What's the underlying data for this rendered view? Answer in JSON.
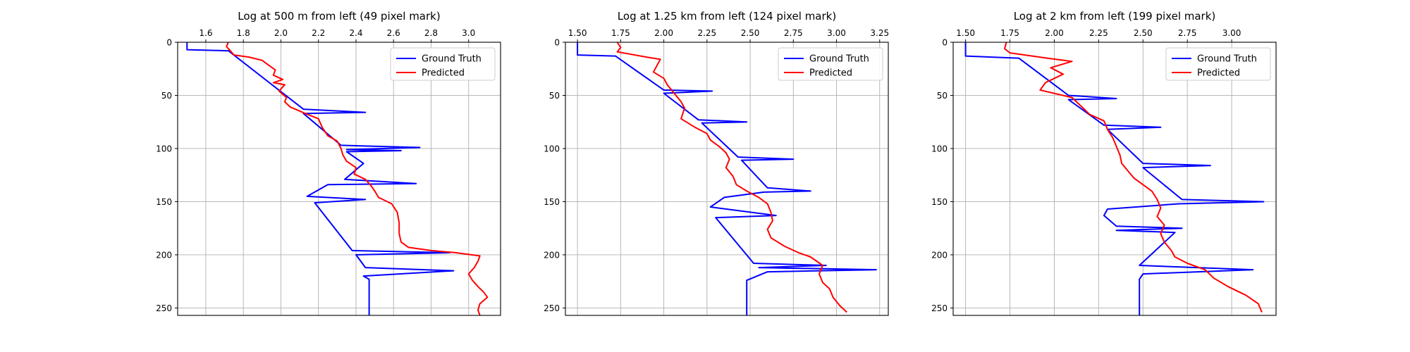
{
  "chart_data": [
    {
      "type": "line",
      "title": "Log at 500 m from left (49 pixel mark)",
      "xlim": [
        1.45,
        3.17
      ],
      "ylim": [
        257,
        0
      ],
      "xticks": [
        1.6,
        1.8,
        2.0,
        2.2,
        2.4,
        2.6,
        2.8,
        3.0
      ],
      "xtick_labels": [
        "1.6",
        "1.8",
        "2.0",
        "2.2",
        "2.4",
        "2.6",
        "2.8",
        "3.0"
      ],
      "yticks": [
        0,
        50,
        100,
        150,
        200,
        250
      ],
      "ytick_labels": [
        "0",
        "50",
        "100",
        "150",
        "200",
        "250"
      ],
      "xaxis_position": "top",
      "grid": true,
      "legend_position": "top-right",
      "series": [
        {
          "name": "Ground Truth",
          "color": "#0000ff",
          "points": [
            [
              1.5,
              0
            ],
            [
              1.5,
              7
            ],
            [
              1.72,
              8
            ],
            [
              2.12,
              63
            ],
            [
              2.45,
              66
            ],
            [
              2.12,
              67
            ],
            [
              2.32,
              97
            ],
            [
              2.74,
              99
            ],
            [
              2.35,
              101
            ],
            [
              2.64,
              102
            ],
            [
              2.35,
              103
            ],
            [
              2.44,
              114
            ],
            [
              2.34,
              129
            ],
            [
              2.72,
              133
            ],
            [
              2.25,
              134
            ],
            [
              2.14,
              145
            ],
            [
              2.45,
              148
            ],
            [
              2.18,
              151
            ],
            [
              2.38,
              196
            ],
            [
              2.9,
              198
            ],
            [
              2.4,
              200
            ],
            [
              2.45,
              212
            ],
            [
              2.92,
              215
            ],
            [
              2.44,
              220
            ],
            [
              2.47,
              223
            ],
            [
              2.47,
              257
            ]
          ]
        },
        {
          "name": "Predicted",
          "color": "#ff0000",
          "points": [
            [
              1.72,
              0
            ],
            [
              1.71,
              4
            ],
            [
              1.73,
              8
            ],
            [
              1.75,
              12
            ],
            [
              1.83,
              14
            ],
            [
              1.9,
              17
            ],
            [
              1.93,
              21
            ],
            [
              1.97,
              26
            ],
            [
              1.96,
              31
            ],
            [
              2.01,
              35
            ],
            [
              1.96,
              38
            ],
            [
              2.02,
              40
            ],
            [
              1.99,
              46
            ],
            [
              2.03,
              52
            ],
            [
              2.02,
              56
            ],
            [
              2.05,
              61
            ],
            [
              2.13,
              67
            ],
            [
              2.2,
              72
            ],
            [
              2.22,
              80
            ],
            [
              2.25,
              88
            ],
            [
              2.3,
              93
            ],
            [
              2.32,
              100
            ],
            [
              2.33,
              106
            ],
            [
              2.35,
              112
            ],
            [
              2.4,
              118
            ],
            [
              2.39,
              124
            ],
            [
              2.45,
              129
            ],
            [
              2.48,
              135
            ],
            [
              2.5,
              140
            ],
            [
              2.52,
              146
            ],
            [
              2.59,
              152
            ],
            [
              2.62,
              160
            ],
            [
              2.63,
              170
            ],
            [
              2.63,
              180
            ],
            [
              2.64,
              188
            ],
            [
              2.68,
              193
            ],
            [
              2.8,
              196
            ],
            [
              2.93,
              198
            ],
            [
              3.06,
              201
            ],
            [
              3.05,
              206
            ],
            [
              3.03,
              212
            ],
            [
              3.0,
              218
            ],
            [
              3.02,
              224
            ],
            [
              3.05,
              230
            ],
            [
              3.08,
              235
            ],
            [
              3.1,
              240
            ],
            [
              3.06,
              246
            ],
            [
              3.05,
              252
            ],
            [
              3.06,
              257
            ]
          ]
        }
      ]
    },
    {
      "type": "line",
      "title": "Log at 1.25 km from left (124 pixel mark)",
      "xlim": [
        1.43,
        3.3
      ],
      "ylim": [
        257,
        0
      ],
      "xticks": [
        1.5,
        1.75,
        2.0,
        2.25,
        2.5,
        2.75,
        3.0,
        3.25
      ],
      "xtick_labels": [
        "1.50",
        "1.75",
        "2.00",
        "2.25",
        "2.50",
        "2.75",
        "3.00",
        "3.25"
      ],
      "yticks": [
        0,
        50,
        100,
        150,
        200,
        250
      ],
      "ytick_labels": [
        "0",
        "50",
        "100",
        "150",
        "200",
        "250"
      ],
      "xaxis_position": "top",
      "grid": true,
      "legend_position": "top-right",
      "series": [
        {
          "name": "Ground Truth",
          "color": "#0000ff",
          "points": [
            [
              1.5,
              0
            ],
            [
              1.5,
              12
            ],
            [
              1.72,
              13
            ],
            [
              2.0,
              45
            ],
            [
              2.28,
              46
            ],
            [
              2.0,
              48
            ],
            [
              2.2,
              73
            ],
            [
              2.48,
              75
            ],
            [
              2.22,
              76
            ],
            [
              2.43,
              108
            ],
            [
              2.75,
              110
            ],
            [
              2.45,
              111
            ],
            [
              2.6,
              137
            ],
            [
              2.85,
              140
            ],
            [
              2.58,
              141
            ],
            [
              2.35,
              146
            ],
            [
              2.27,
              155
            ],
            [
              2.65,
              163
            ],
            [
              2.3,
              165
            ],
            [
              2.52,
              208
            ],
            [
              2.94,
              210
            ],
            [
              2.55,
              212
            ],
            [
              3.23,
              214
            ],
            [
              2.6,
              216
            ],
            [
              2.48,
              224
            ],
            [
              2.48,
              257
            ]
          ]
        },
        {
          "name": "Predicted",
          "color": "#ff0000",
          "points": [
            [
              1.73,
              0
            ],
            [
              1.75,
              5
            ],
            [
              1.73,
              9
            ],
            [
              1.9,
              14
            ],
            [
              1.98,
              16
            ],
            [
              1.96,
              22
            ],
            [
              1.94,
              28
            ],
            [
              2.0,
              34
            ],
            [
              2.02,
              40
            ],
            [
              2.06,
              48
            ],
            [
              2.1,
              56
            ],
            [
              2.12,
              62
            ],
            [
              2.1,
              72
            ],
            [
              2.18,
              80
            ],
            [
              2.25,
              86
            ],
            [
              2.27,
              92
            ],
            [
              2.32,
              98
            ],
            [
              2.36,
              104
            ],
            [
              2.38,
              110
            ],
            [
              2.36,
              118
            ],
            [
              2.4,
              126
            ],
            [
              2.42,
              134
            ],
            [
              2.48,
              140
            ],
            [
              2.55,
              146
            ],
            [
              2.6,
              152
            ],
            [
              2.62,
              160
            ],
            [
              2.63,
              168
            ],
            [
              2.6,
              176
            ],
            [
              2.62,
              184
            ],
            [
              2.7,
              192
            ],
            [
              2.78,
              198
            ],
            [
              2.85,
              202
            ],
            [
              2.92,
              210
            ],
            [
              2.9,
              218
            ],
            [
              2.92,
              226
            ],
            [
              2.96,
              232
            ],
            [
              2.98,
              240
            ],
            [
              3.02,
              248
            ],
            [
              3.06,
              254
            ]
          ]
        }
      ]
    },
    {
      "type": "line",
      "title": "Log at 2 km from left (199 pixel mark)",
      "xlim": [
        1.43,
        3.25
      ],
      "ylim": [
        257,
        0
      ],
      "xticks": [
        1.5,
        1.75,
        2.0,
        2.25,
        2.5,
        2.75,
        3.0
      ],
      "xtick_labels": [
        "1.50",
        "1.75",
        "2.00",
        "2.25",
        "2.50",
        "2.75",
        "3.00"
      ],
      "yticks": [
        0,
        50,
        100,
        150,
        200,
        250
      ],
      "ytick_labels": [
        "0",
        "50",
        "100",
        "150",
        "200",
        "250"
      ],
      "xaxis_position": "top",
      "grid": true,
      "legend_position": "top-right",
      "series": [
        {
          "name": "Ground Truth",
          "color": "#0000ff",
          "points": [
            [
              1.5,
              0
            ],
            [
              1.5,
              13
            ],
            [
              1.8,
              15
            ],
            [
              2.08,
              50
            ],
            [
              2.35,
              53
            ],
            [
              2.08,
              54
            ],
            [
              2.28,
              78
            ],
            [
              2.6,
              80
            ],
            [
              2.3,
              82
            ],
            [
              2.5,
              114
            ],
            [
              2.88,
              116
            ],
            [
              2.5,
              118
            ],
            [
              2.72,
              148
            ],
            [
              3.18,
              150
            ],
            [
              2.7,
              152
            ],
            [
              2.3,
              157
            ],
            [
              2.28,
              163
            ],
            [
              2.35,
              173
            ],
            [
              2.72,
              175
            ],
            [
              2.35,
              177
            ],
            [
              2.68,
              179
            ],
            [
              2.48,
              210
            ],
            [
              3.12,
              214
            ],
            [
              2.5,
              218
            ],
            [
              2.48,
              223
            ],
            [
              2.48,
              257
            ]
          ]
        },
        {
          "name": "Predicted",
          "color": "#ff0000",
          "points": [
            [
              1.73,
              0
            ],
            [
              1.72,
              6
            ],
            [
              1.75,
              10
            ],
            [
              1.96,
              15
            ],
            [
              2.1,
              18
            ],
            [
              1.98,
              24
            ],
            [
              2.05,
              30
            ],
            [
              1.95,
              38
            ],
            [
              1.92,
              45
            ],
            [
              2.1,
              52
            ],
            [
              2.15,
              60
            ],
            [
              2.2,
              68
            ],
            [
              2.28,
              74
            ],
            [
              2.3,
              82
            ],
            [
              2.33,
              90
            ],
            [
              2.35,
              98
            ],
            [
              2.37,
              106
            ],
            [
              2.38,
              114
            ],
            [
              2.42,
              122
            ],
            [
              2.45,
              128
            ],
            [
              2.5,
              134
            ],
            [
              2.55,
              140
            ],
            [
              2.58,
              148
            ],
            [
              2.6,
              156
            ],
            [
              2.58,
              164
            ],
            [
              2.62,
              172
            ],
            [
              2.6,
              180
            ],
            [
              2.62,
              188
            ],
            [
              2.66,
              196
            ],
            [
              2.68,
              202
            ],
            [
              2.75,
              208
            ],
            [
              2.85,
              214
            ],
            [
              2.9,
              222
            ],
            [
              2.98,
              230
            ],
            [
              3.08,
              238
            ],
            [
              3.15,
              246
            ],
            [
              3.17,
              254
            ]
          ]
        }
      ]
    }
  ]
}
